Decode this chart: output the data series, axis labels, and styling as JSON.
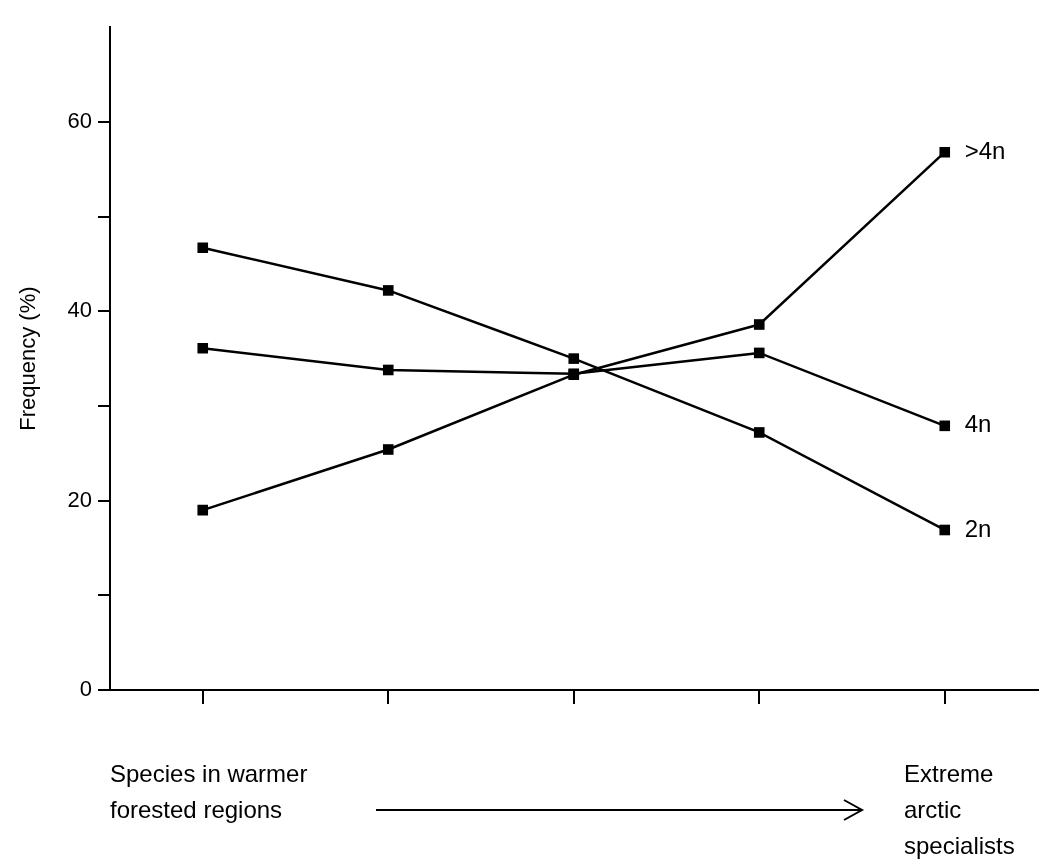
{
  "chart_data": {
    "type": "line",
    "ylabel": "Frequency (%)",
    "categories": [
      null,
      null,
      null,
      null,
      null
    ],
    "ylim": [
      0,
      70
    ],
    "yticks": [
      0,
      {
        "value": 10,
        "label": null
      },
      20,
      {
        "value": 30,
        "label": null
      },
      40,
      {
        "value": 50,
        "label": null
      },
      60
    ],
    "series": [
      {
        "name": ">4n",
        "color": "#000000",
        "values": [
          19.0,
          25.4,
          33.3,
          38.6,
          56.8
        ]
      },
      {
        "name": "4n",
        "color": "#000000",
        "values": [
          36.1,
          33.8,
          33.4,
          35.6,
          27.9
        ]
      },
      {
        "name": "2n",
        "color": "#000000",
        "values": [
          46.7,
          42.2,
          35.0,
          27.2,
          16.9
        ]
      }
    ],
    "annotations": [
      "Species in warmer forested regions",
      "Extreme arctic specialists"
    ],
    "grid": false,
    "legend": false,
    "marker": "square",
    "line_style": "solid"
  }
}
